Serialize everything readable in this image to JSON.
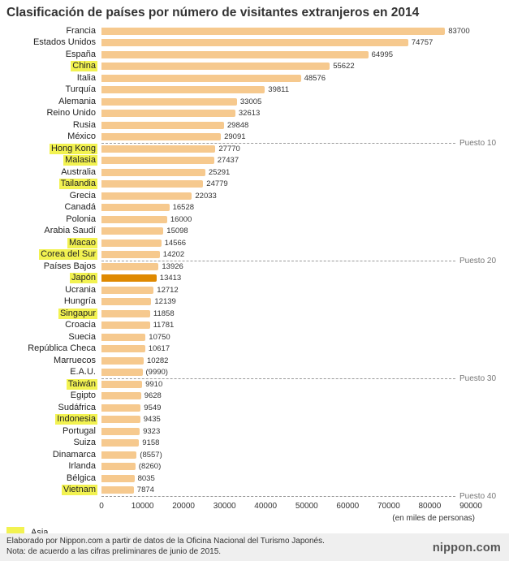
{
  "title": "Clasificación de países por número de visitantes extranjeros en 2014",
  "chart_data": {
    "type": "bar",
    "orientation": "horizontal",
    "title": "Clasificación de países por número de visitantes extranjeros en 2014",
    "xlim": [
      0,
      90000
    ],
    "x_ticks": [
      0,
      10000,
      20000,
      30000,
      40000,
      50000,
      60000,
      70000,
      80000,
      90000
    ],
    "x_unit_label": "(en miles de personas)",
    "legend": [
      {
        "label": "Asia",
        "color": "#f2f251"
      }
    ],
    "colors": {
      "bar": "#f6c98e",
      "japan_bar": "#df8900",
      "asia_highlight": "#f2f251"
    },
    "rank_markers": [
      {
        "after_row": 10,
        "label": "Puesto 10"
      },
      {
        "after_row": 20,
        "label": "Puesto 20"
      },
      {
        "after_row": 30,
        "label": "Puesto 30"
      },
      {
        "after_row": 40,
        "label": "Puesto 40"
      }
    ],
    "rows": [
      {
        "label": "Francia",
        "value": 83700,
        "display": "83700",
        "asia": false,
        "japan": false
      },
      {
        "label": "Estados Unidos",
        "value": 74757,
        "display": "74757",
        "asia": false,
        "japan": false
      },
      {
        "label": "España",
        "value": 64995,
        "display": "64995",
        "asia": false,
        "japan": false
      },
      {
        "label": "China",
        "value": 55622,
        "display": "55622",
        "asia": true,
        "japan": false
      },
      {
        "label": "Italia",
        "value": 48576,
        "display": "48576",
        "asia": false,
        "japan": false
      },
      {
        "label": "Turquía",
        "value": 39811,
        "display": "39811",
        "asia": false,
        "japan": false
      },
      {
        "label": "Alemania",
        "value": 33005,
        "display": "33005",
        "asia": false,
        "japan": false
      },
      {
        "label": "Reino Unido",
        "value": 32613,
        "display": "32613",
        "asia": false,
        "japan": false
      },
      {
        "label": "Rusia",
        "value": 29848,
        "display": "29848",
        "asia": false,
        "japan": false
      },
      {
        "label": "México",
        "value": 29091,
        "display": "29091",
        "asia": false,
        "japan": false
      },
      {
        "label": "Hong Kong",
        "value": 27770,
        "display": "27770",
        "asia": true,
        "japan": false
      },
      {
        "label": "Malasia",
        "value": 27437,
        "display": "27437",
        "asia": true,
        "japan": false
      },
      {
        "label": "Australia",
        "value": 25291,
        "display": "25291",
        "asia": false,
        "japan": false
      },
      {
        "label": "Tailandia",
        "value": 24779,
        "display": "24779",
        "asia": true,
        "japan": false
      },
      {
        "label": "Grecia",
        "value": 22033,
        "display": "22033",
        "asia": false,
        "japan": false
      },
      {
        "label": "Canadá",
        "value": 16528,
        "display": "16528",
        "asia": false,
        "japan": false
      },
      {
        "label": "Polonia",
        "value": 16000,
        "display": "16000",
        "asia": false,
        "japan": false
      },
      {
        "label": "Arabia Saudí",
        "value": 15098,
        "display": "15098",
        "asia": false,
        "japan": false
      },
      {
        "label": "Macao",
        "value": 14566,
        "display": "14566",
        "asia": true,
        "japan": false
      },
      {
        "label": "Corea del Sur",
        "value": 14202,
        "display": "14202",
        "asia": true,
        "japan": false
      },
      {
        "label": "Países Bajos",
        "value": 13926,
        "display": "13926",
        "asia": false,
        "japan": false
      },
      {
        "label": "Japón",
        "value": 13413,
        "display": "13413",
        "asia": true,
        "japan": true
      },
      {
        "label": "Ucrania",
        "value": 12712,
        "display": "12712",
        "asia": false,
        "japan": false
      },
      {
        "label": "Hungría",
        "value": 12139,
        "display": "12139",
        "asia": false,
        "japan": false
      },
      {
        "label": "Singapur",
        "value": 11858,
        "display": "11858",
        "asia": true,
        "japan": false
      },
      {
        "label": "Croacia",
        "value": 11781,
        "display": "11781",
        "asia": false,
        "japan": false
      },
      {
        "label": "Suecia",
        "value": 10750,
        "display": "10750",
        "asia": false,
        "japan": false
      },
      {
        "label": "República Checa",
        "value": 10617,
        "display": "10617",
        "asia": false,
        "japan": false
      },
      {
        "label": "Marruecos",
        "value": 10282,
        "display": "10282",
        "asia": false,
        "japan": false
      },
      {
        "label": "E.A.U.",
        "value": 9990,
        "display": "(9990)",
        "asia": false,
        "japan": false
      },
      {
        "label": "Taiwán",
        "value": 9910,
        "display": "9910",
        "asia": true,
        "japan": false
      },
      {
        "label": "Egipto",
        "value": 9628,
        "display": "9628",
        "asia": false,
        "japan": false
      },
      {
        "label": "Sudáfrica",
        "value": 9549,
        "display": "9549",
        "asia": false,
        "japan": false
      },
      {
        "label": "Indonesia",
        "value": 9435,
        "display": "9435",
        "asia": true,
        "japan": false
      },
      {
        "label": "Portugal",
        "value": 9323,
        "display": "9323",
        "asia": false,
        "japan": false
      },
      {
        "label": "Suiza",
        "value": 9158,
        "display": "9158",
        "asia": false,
        "japan": false
      },
      {
        "label": "Dinamarca",
        "value": 8557,
        "display": "(8557)",
        "asia": false,
        "japan": false
      },
      {
        "label": "Irlanda",
        "value": 8260,
        "display": "(8260)",
        "asia": false,
        "japan": false
      },
      {
        "label": "Bélgica",
        "value": 8035,
        "display": "8035",
        "asia": false,
        "japan": false
      },
      {
        "label": "Vietnam",
        "value": 7874,
        "display": "7874",
        "asia": true,
        "japan": false
      }
    ]
  },
  "footer": {
    "line1": "Elaborado por Nippon.com a partir de datos de la Oficina Nacional del Turismo Japonés.",
    "line2": "Nota: de acuerdo a las cifras preliminares de junio de 2015.",
    "brand": "nippon.com"
  }
}
